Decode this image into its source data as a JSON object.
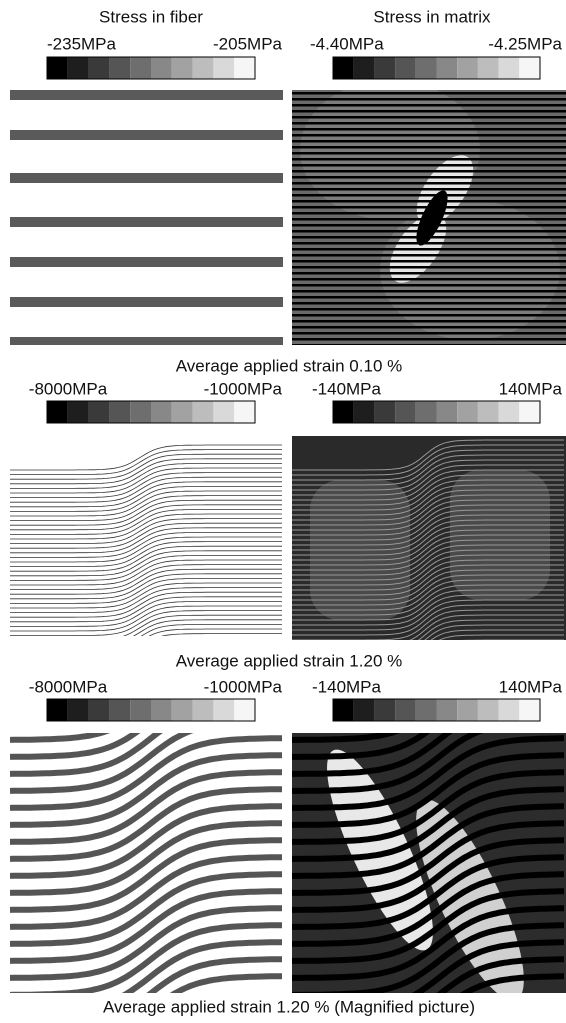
{
  "headers": [
    "Stress in fiber",
    "Stress in matrix"
  ],
  "panels": [
    {
      "fiber_scale": [
        "-235MPa",
        "-205MPa"
      ],
      "matrix_scale": [
        "-4.40MPa",
        "-4.25MPa"
      ],
      "caption": "Average applied strain 0.10 %"
    },
    {
      "fiber_scale": [
        "-8000MPa",
        "-1000MPa"
      ],
      "matrix_scale": [
        "-140MPa",
        "140MPa"
      ],
      "caption": "Average applied strain 1.20 %"
    },
    {
      "fiber_scale": [
        "-8000MPa",
        "-1000MPa"
      ],
      "matrix_scale": [
        "-140MPa",
        "140MPa"
      ],
      "caption": "Average applied strain 1.20 % (Magnified picture)"
    }
  ]
}
